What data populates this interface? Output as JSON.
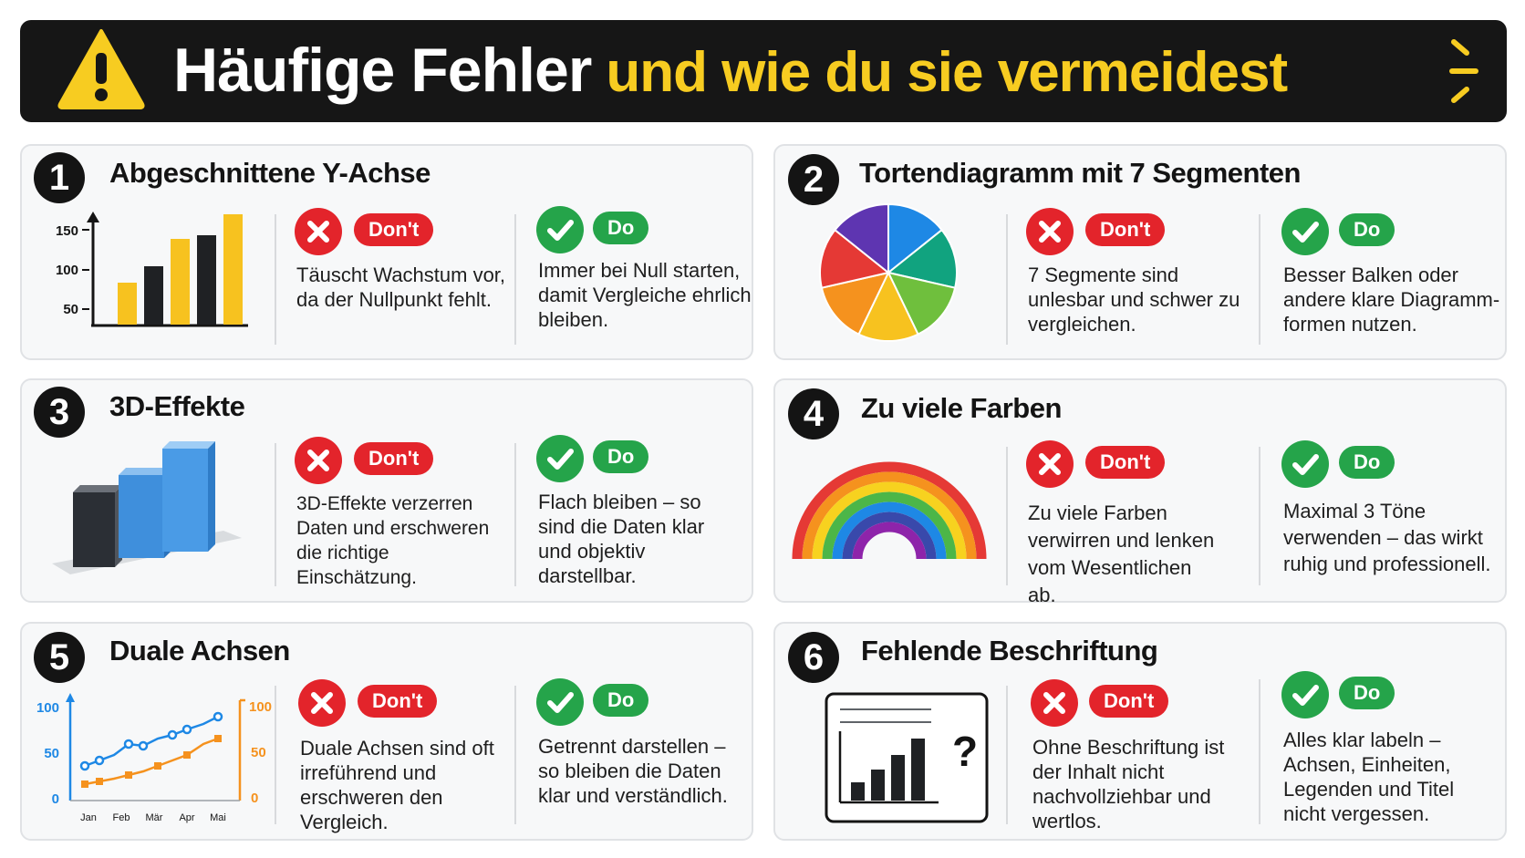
{
  "header": {
    "title_main": "Häufige Fehler",
    "title_accent": "und wie du sie vermeidest",
    "warning_icon": "warning-triangle-icon"
  },
  "labels": {
    "dont": "Don't",
    "do": "Do"
  },
  "colors": {
    "banner": "#161616",
    "accent": "#f7cc21",
    "dont": "#e3242b",
    "do": "#25a44a"
  },
  "cards": [
    {
      "number": "1",
      "title": "Abgeschnittene Y-Achse",
      "dont_text": "Täuscht Wachstum vor, da der Nullpunkt fehlt.",
      "do_text": "Immer bei Null starten, damit Vergleiche ehrlich bleiben.",
      "chart": {
        "type": "bar",
        "ticks": [
          "150",
          "100",
          "50"
        ]
      }
    },
    {
      "number": "2",
      "title": "Tortendiagramm mit 7 Segmenten",
      "dont_text": "7 Segmente sind unlesbar und schwer zu vergleichen.",
      "do_text": "Besser Balken oder andere klare Diagramm-formen nutzen."
    },
    {
      "number": "3",
      "title": "3D-Effekte",
      "dont_text": "3D-Effekte verzerren Daten und erschweren die richtige Einschätzung.",
      "do_text": "Flach bleiben – so sind die Daten klar und objektiv darstellbar."
    },
    {
      "number": "4",
      "title": "Zu viele Farben",
      "dont_text": "Zu viele Farben verwirren und lenken vom Wesentlichen ab.",
      "do_text": "Maximal 3 Töne verwenden – das wirkt ruhig und professionell."
    },
    {
      "number": "5",
      "title": "Duale Achsen",
      "dont_text": "Duale Achsen sind oft irreführend und erschweren den Vergleich.",
      "do_text": "Getrennt darstellen – so bleiben die Daten klar und verständlich.",
      "chart": {
        "left_ticks": [
          "100",
          "50",
          "0"
        ],
        "right_ticks": [
          "100",
          "50",
          "0"
        ],
        "months": [
          "Jan",
          "Feb",
          "Mär",
          "Apr",
          "Mai"
        ]
      }
    },
    {
      "number": "6",
      "title": "Fehlende Beschriftung",
      "dont_text": "Ohne Beschriftung ist der Inhalt nicht nachvollziehbar und wertlos.",
      "do_text": "Alles klar labeln – Achsen, Einheiten, Legenden und Titel nicht vergessen.",
      "mark": "?"
    }
  ]
}
